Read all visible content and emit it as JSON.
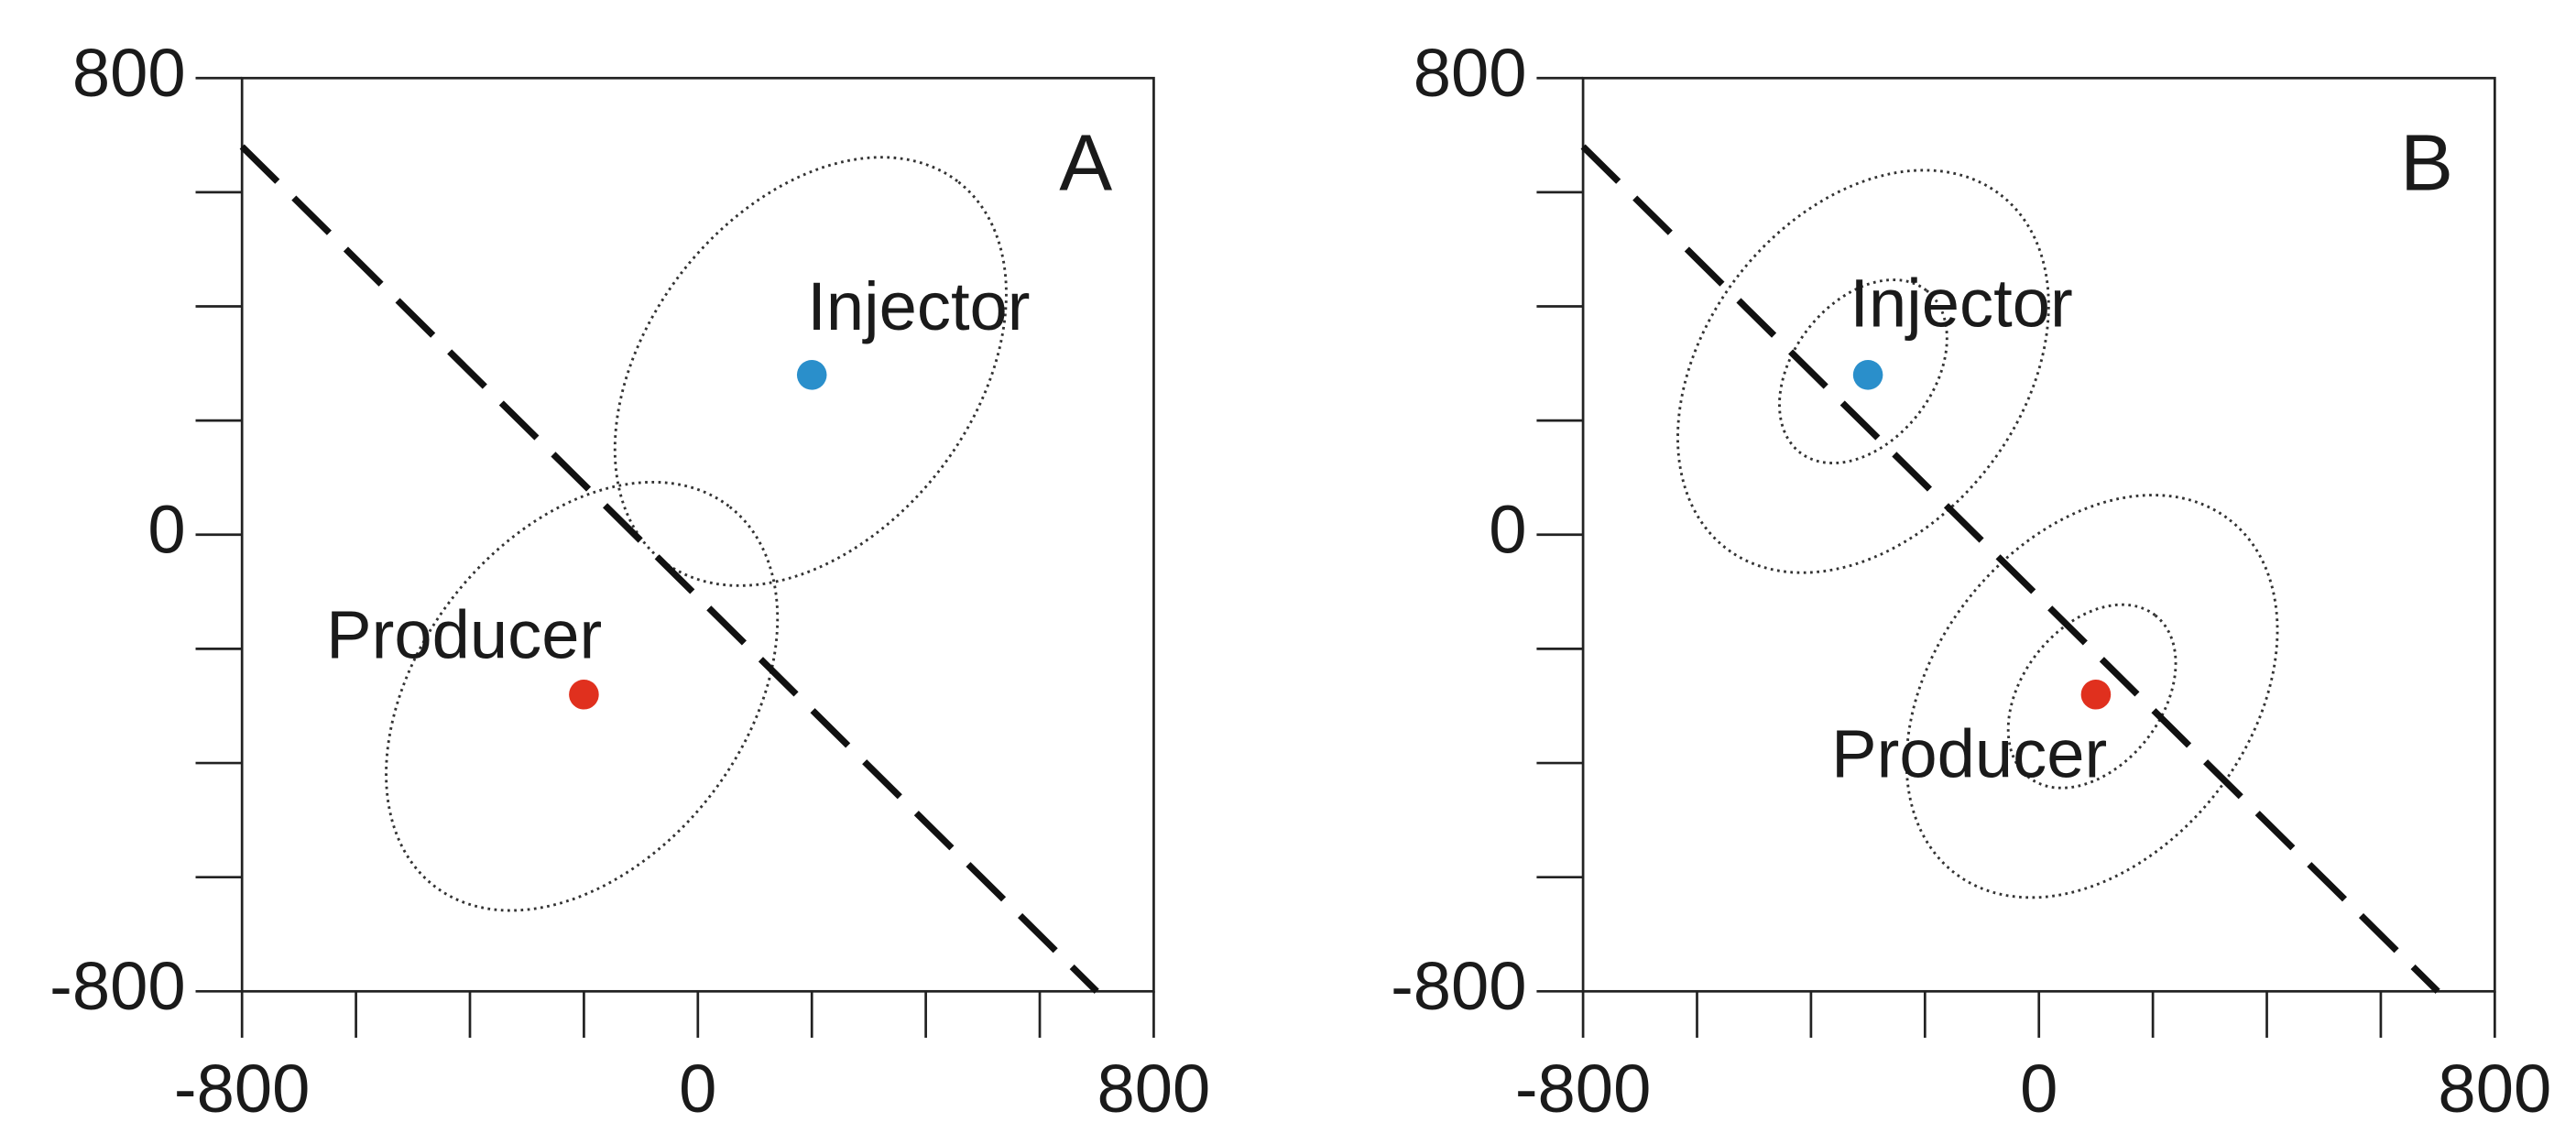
{
  "chart_data": [
    {
      "type": "scatter",
      "panel_label": "A",
      "xlim": [
        -800,
        800
      ],
      "ylim": [
        -800,
        800
      ],
      "xticks": [
        -800,
        0,
        800
      ],
      "yticks": [
        -800,
        0,
        800
      ],
      "minor_xticks": [
        -600,
        -400,
        -200,
        200,
        400,
        600
      ],
      "minor_yticks": [
        -600,
        -400,
        -200,
        200,
        400,
        600
      ],
      "series": [
        {
          "name": "Injector",
          "color": "#2a8fcb",
          "x": [
            200
          ],
          "values": [
            280
          ]
        },
        {
          "name": "Producer",
          "color": "#e0301e",
          "x": [
            -200
          ],
          "values": [
            -280
          ]
        }
      ],
      "lines": [
        {
          "x": [
            -800,
            700
          ],
          "values": [
            680,
            -800
          ],
          "color": "#111111"
        }
      ]
    },
    {
      "type": "scatter",
      "panel_label": "B",
      "xlim": [
        -800,
        800
      ],
      "ylim": [
        -800,
        800
      ],
      "xticks": [
        -800,
        0,
        800
      ],
      "yticks": [
        -800,
        0,
        800
      ],
      "minor_xticks": [
        -600,
        -400,
        -200,
        200,
        400,
        600
      ],
      "minor_yticks": [
        -600,
        -400,
        -200,
        200,
        400,
        600
      ],
      "series": [
        {
          "name": "Injector",
          "color": "#2a8fcb",
          "x": [
            -300
          ],
          "values": [
            280
          ]
        },
        {
          "name": "Producer",
          "color": "#e0301e",
          "x": [
            100
          ],
          "values": [
            -280
          ]
        }
      ],
      "lines": [
        {
          "x": [
            -800,
            700
          ],
          "values": [
            680,
            -800
          ],
          "color": "#111111"
        }
      ]
    }
  ]
}
